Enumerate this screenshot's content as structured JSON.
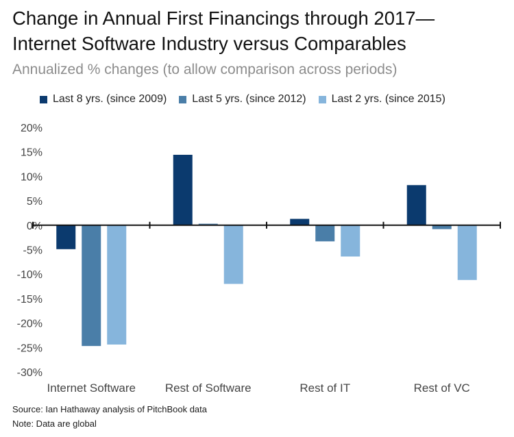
{
  "title_line1": "Change in Annual First Financings through 2017—",
  "title_line2": "Internet Software Industry versus Comparables",
  "subtitle": "Annualized % changes (to allow comparison across periods)",
  "source": "Source: Ian Hathaway analysis of PitchBook data",
  "note": "Note: Data are global",
  "chart_data": {
    "type": "bar",
    "title": "Change in Annual First Financings through 2017— Internet Software Industry versus Comparables",
    "subtitle": "Annualized % changes (to allow comparison across periods)",
    "categories": [
      "Internet Software",
      "Rest of Software",
      "Rest of IT",
      "Rest of VC"
    ],
    "series": [
      {
        "name": "Last 8 yrs. (since 2009)",
        "color": "#0b3a6e",
        "values": [
          -4.9,
          14.4,
          1.3,
          8.2
        ]
      },
      {
        "name": "Last 5 yrs. (since 2012)",
        "color": "#4a7ea8",
        "values": [
          -24.7,
          0.3,
          -3.3,
          -0.8
        ]
      },
      {
        "name": "Last 2 yrs. (since 2015)",
        "color": "#86b5dc",
        "values": [
          -24.4,
          -12.0,
          -6.4,
          -11.2
        ]
      }
    ],
    "ylim": [
      -30,
      20
    ],
    "yticks": [
      20,
      15,
      10,
      5,
      0,
      -5,
      -10,
      -15,
      -20,
      -25,
      -30
    ],
    "ytick_labels": [
      "20%",
      "15%",
      "10%",
      "5%",
      "0%",
      "-5%",
      "-10%",
      "-15%",
      "-20%",
      "-25%",
      "-30%"
    ],
    "xlabel": "",
    "ylabel": "",
    "grid": false,
    "legend_position": "top"
  }
}
